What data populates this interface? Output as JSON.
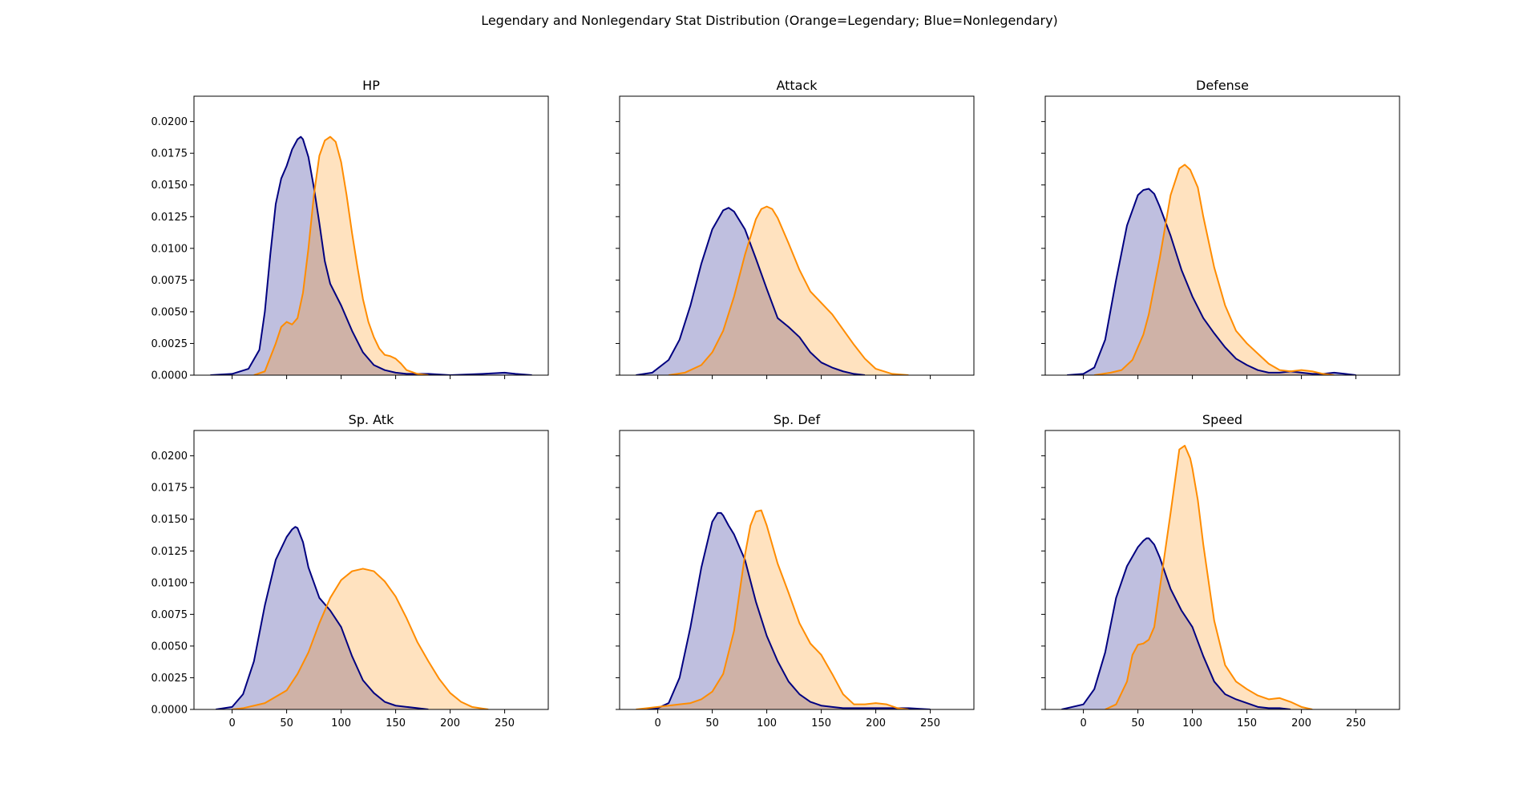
{
  "chart_data": {
    "type": "area",
    "title": "Legendary and Nonlegendary Stat Distribution (Orange=Legendary;   Blue=Nonlegendary)",
    "xlim": [
      -35,
      290
    ],
    "ylim": [
      0,
      0.022
    ],
    "xticks": [
      0,
      50,
      100,
      150,
      200,
      250
    ],
    "yticks": [
      "0.0000",
      "0.0025",
      "0.0050",
      "0.0075",
      "0.0100",
      "0.0125",
      "0.0150",
      "0.0175",
      "0.0200"
    ],
    "sharey": true,
    "layout": "2x3",
    "colors": {
      "Nonlegendary": {
        "line": "#000080",
        "fill": "#000080",
        "fill_opacity": 0.25
      },
      "Legendary": {
        "line": "#ff8c00",
        "fill": "#ff8c00",
        "fill_opacity": 0.25
      }
    },
    "panels": [
      {
        "title": "HP",
        "series": [
          {
            "key": "Nonlegendary",
            "x": [
              -20,
              0,
              15,
              25,
              30,
              35,
              40,
              45,
              50,
              55,
              60,
              63,
              65,
              70,
              75,
              80,
              85,
              90,
              100,
              110,
              120,
              130,
              140,
              150,
              160,
              180,
              200,
              230,
              250,
              260,
              275
            ],
            "y": [
              0,
              0.0001,
              0.0005,
              0.002,
              0.005,
              0.0095,
              0.0135,
              0.0155,
              0.0165,
              0.0178,
              0.0186,
              0.0188,
              0.0186,
              0.0172,
              0.0148,
              0.012,
              0.009,
              0.0072,
              0.0055,
              0.0035,
              0.0018,
              0.0008,
              0.0004,
              0.0002,
              0.0001,
              0.0001,
              0,
              0.0001,
              0.0002,
              0.0001,
              0
            ]
          },
          {
            "key": "Legendary",
            "x": [
              20,
              30,
              40,
              45,
              50,
              55,
              60,
              65,
              70,
              75,
              80,
              85,
              90,
              95,
              100,
              105,
              110,
              115,
              120,
              125,
              130,
              135,
              140,
              145,
              150,
              155,
              160,
              170,
              180
            ],
            "y": [
              0,
              0.0003,
              0.0025,
              0.0038,
              0.0042,
              0.004,
              0.0045,
              0.0065,
              0.01,
              0.0142,
              0.0173,
              0.0185,
              0.0188,
              0.0184,
              0.0168,
              0.0142,
              0.0112,
              0.0085,
              0.006,
              0.0042,
              0.003,
              0.0021,
              0.0016,
              0.0015,
              0.0013,
              0.0009,
              0.0004,
              0.0001,
              0
            ]
          }
        ]
      },
      {
        "title": "Attack",
        "series": [
          {
            "key": "Nonlegendary",
            "x": [
              -20,
              -5,
              10,
              20,
              30,
              40,
              50,
              60,
              65,
              70,
              80,
              90,
              100,
              110,
              120,
              130,
              140,
              150,
              160,
              170,
              180,
              190
            ],
            "y": [
              0,
              0.0002,
              0.0012,
              0.0028,
              0.0055,
              0.0088,
              0.0115,
              0.013,
              0.0132,
              0.0129,
              0.0115,
              0.0092,
              0.0068,
              0.0045,
              0.0038,
              0.003,
              0.0018,
              0.001,
              0.0006,
              0.0003,
              0.0001,
              0
            ]
          },
          {
            "key": "Legendary",
            "x": [
              10,
              25,
              40,
              50,
              60,
              70,
              80,
              90,
              95,
              100,
              105,
              110,
              120,
              130,
              140,
              150,
              160,
              170,
              180,
              190,
              200,
              215,
              230
            ],
            "y": [
              0,
              0.0002,
              0.0008,
              0.0018,
              0.0035,
              0.0062,
              0.0095,
              0.0123,
              0.0131,
              0.0133,
              0.0131,
              0.0124,
              0.0104,
              0.0083,
              0.0066,
              0.0057,
              0.0048,
              0.0036,
              0.0024,
              0.0013,
              0.0005,
              0.0001,
              0
            ]
          }
        ]
      },
      {
        "title": "Defense",
        "series": [
          {
            "key": "Nonlegendary",
            "x": [
              -15,
              0,
              10,
              20,
              30,
              40,
              50,
              55,
              60,
              65,
              70,
              80,
              90,
              100,
              110,
              120,
              130,
              140,
              150,
              160,
              170,
              180,
              190,
              200,
              210,
              220,
              230,
              240,
              250
            ],
            "y": [
              0,
              0.0001,
              0.0006,
              0.0028,
              0.0075,
              0.0118,
              0.0142,
              0.0146,
              0.0147,
              0.0143,
              0.0133,
              0.011,
              0.0083,
              0.0062,
              0.0045,
              0.0033,
              0.0022,
              0.0013,
              0.0008,
              0.0004,
              0.0002,
              0.0002,
              0.0003,
              0.0002,
              0.0001,
              0.0001,
              0.0002,
              0.0001,
              0
            ]
          },
          {
            "key": "Legendary",
            "x": [
              10,
              25,
              35,
              45,
              55,
              60,
              70,
              80,
              88,
              93,
              98,
              105,
              110,
              120,
              130,
              140,
              150,
              160,
              170,
              180,
              190,
              200,
              210,
              220,
              230
            ],
            "y": [
              0,
              0.0002,
              0.0004,
              0.0012,
              0.0032,
              0.0048,
              0.0092,
              0.0142,
              0.0163,
              0.0166,
              0.0162,
              0.0148,
              0.0125,
              0.0085,
              0.0055,
              0.0035,
              0.0025,
              0.0017,
              0.0009,
              0.0004,
              0.0003,
              0.0004,
              0.0003,
              0.0001,
              0
            ]
          }
        ]
      },
      {
        "title": "Sp. Atk",
        "series": [
          {
            "key": "Nonlegendary",
            "x": [
              -15,
              0,
              10,
              20,
              30,
              40,
              50,
              55,
              58,
              60,
              65,
              70,
              80,
              90,
              100,
              110,
              120,
              130,
              140,
              150,
              160,
              170,
              180
            ],
            "y": [
              0,
              0.0002,
              0.0012,
              0.0038,
              0.0082,
              0.0118,
              0.0136,
              0.0142,
              0.0144,
              0.0143,
              0.0132,
              0.0112,
              0.0088,
              0.0078,
              0.0065,
              0.0042,
              0.0023,
              0.0013,
              0.0006,
              0.0003,
              0.0002,
              0.0001,
              0
            ]
          },
          {
            "key": "Legendary",
            "x": [
              0,
              10,
              30,
              50,
              60,
              70,
              80,
              90,
              100,
              110,
              120,
              130,
              140,
              150,
              160,
              170,
              180,
              190,
              200,
              210,
              220,
              235
            ],
            "y": [
              0,
              0.0001,
              0.0005,
              0.0015,
              0.0028,
              0.0045,
              0.0068,
              0.0088,
              0.0102,
              0.0109,
              0.0111,
              0.0109,
              0.0101,
              0.0089,
              0.0072,
              0.0053,
              0.0038,
              0.0024,
              0.0013,
              0.0006,
              0.0002,
              0
            ]
          }
        ]
      },
      {
        "title": "Sp. Def",
        "series": [
          {
            "key": "Nonlegendary",
            "x": [
              -15,
              0,
              10,
              20,
              30,
              40,
              50,
              55,
              58,
              60,
              65,
              70,
              80,
              90,
              100,
              110,
              120,
              130,
              140,
              150,
              160,
              170,
              190,
              210,
              230,
              250
            ],
            "y": [
              0,
              0.0001,
              0.0005,
              0.0025,
              0.0065,
              0.0112,
              0.0148,
              0.0155,
              0.0155,
              0.0153,
              0.0145,
              0.0138,
              0.0118,
              0.0085,
              0.0058,
              0.0038,
              0.0022,
              0.0012,
              0.0006,
              0.0003,
              0.0002,
              0.0001,
              0.0001,
              0.0001,
              0.0001,
              0
            ]
          },
          {
            "key": "Legendary",
            "x": [
              -20,
              0,
              10,
              20,
              30,
              40,
              50,
              60,
              70,
              80,
              85,
              90,
              95,
              100,
              110,
              120,
              130,
              140,
              150,
              160,
              170,
              180,
              190,
              200,
              210,
              220,
              230
            ],
            "y": [
              0,
              0.0002,
              0.0003,
              0.0004,
              0.0005,
              0.0008,
              0.0014,
              0.0028,
              0.0062,
              0.0122,
              0.0145,
              0.0156,
              0.0157,
              0.0145,
              0.0115,
              0.0092,
              0.0068,
              0.0052,
              0.0043,
              0.0028,
              0.0012,
              0.0004,
              0.0004,
              0.0005,
              0.0004,
              0.0001,
              0
            ]
          }
        ]
      },
      {
        "title": "Speed",
        "series": [
          {
            "key": "Nonlegendary",
            "x": [
              -20,
              0,
              10,
              20,
              30,
              40,
              50,
              55,
              58,
              60,
              65,
              70,
              80,
              90,
              100,
              110,
              120,
              130,
              140,
              150,
              160,
              170,
              180,
              190
            ],
            "y": [
              0,
              0.0004,
              0.0016,
              0.0045,
              0.0088,
              0.0113,
              0.0128,
              0.0133,
              0.0135,
              0.0135,
              0.013,
              0.012,
              0.0095,
              0.0078,
              0.0065,
              0.0042,
              0.0022,
              0.0012,
              0.0008,
              0.0005,
              0.0002,
              0.0001,
              0.0001,
              0
            ]
          },
          {
            "key": "Legendary",
            "x": [
              20,
              30,
              40,
              45,
              50,
              55,
              60,
              65,
              70,
              80,
              88,
              93,
              98,
              100,
              105,
              110,
              120,
              130,
              140,
              150,
              160,
              170,
              180,
              190,
              200,
              210
            ],
            "y": [
              0,
              0.0004,
              0.0022,
              0.0043,
              0.0051,
              0.0052,
              0.0055,
              0.0065,
              0.0095,
              0.0155,
              0.0205,
              0.0208,
              0.0198,
              0.019,
              0.0165,
              0.013,
              0.007,
              0.0035,
              0.0022,
              0.0016,
              0.0011,
              0.0008,
              0.0009,
              0.0006,
              0.0002,
              0
            ]
          }
        ]
      }
    ]
  }
}
